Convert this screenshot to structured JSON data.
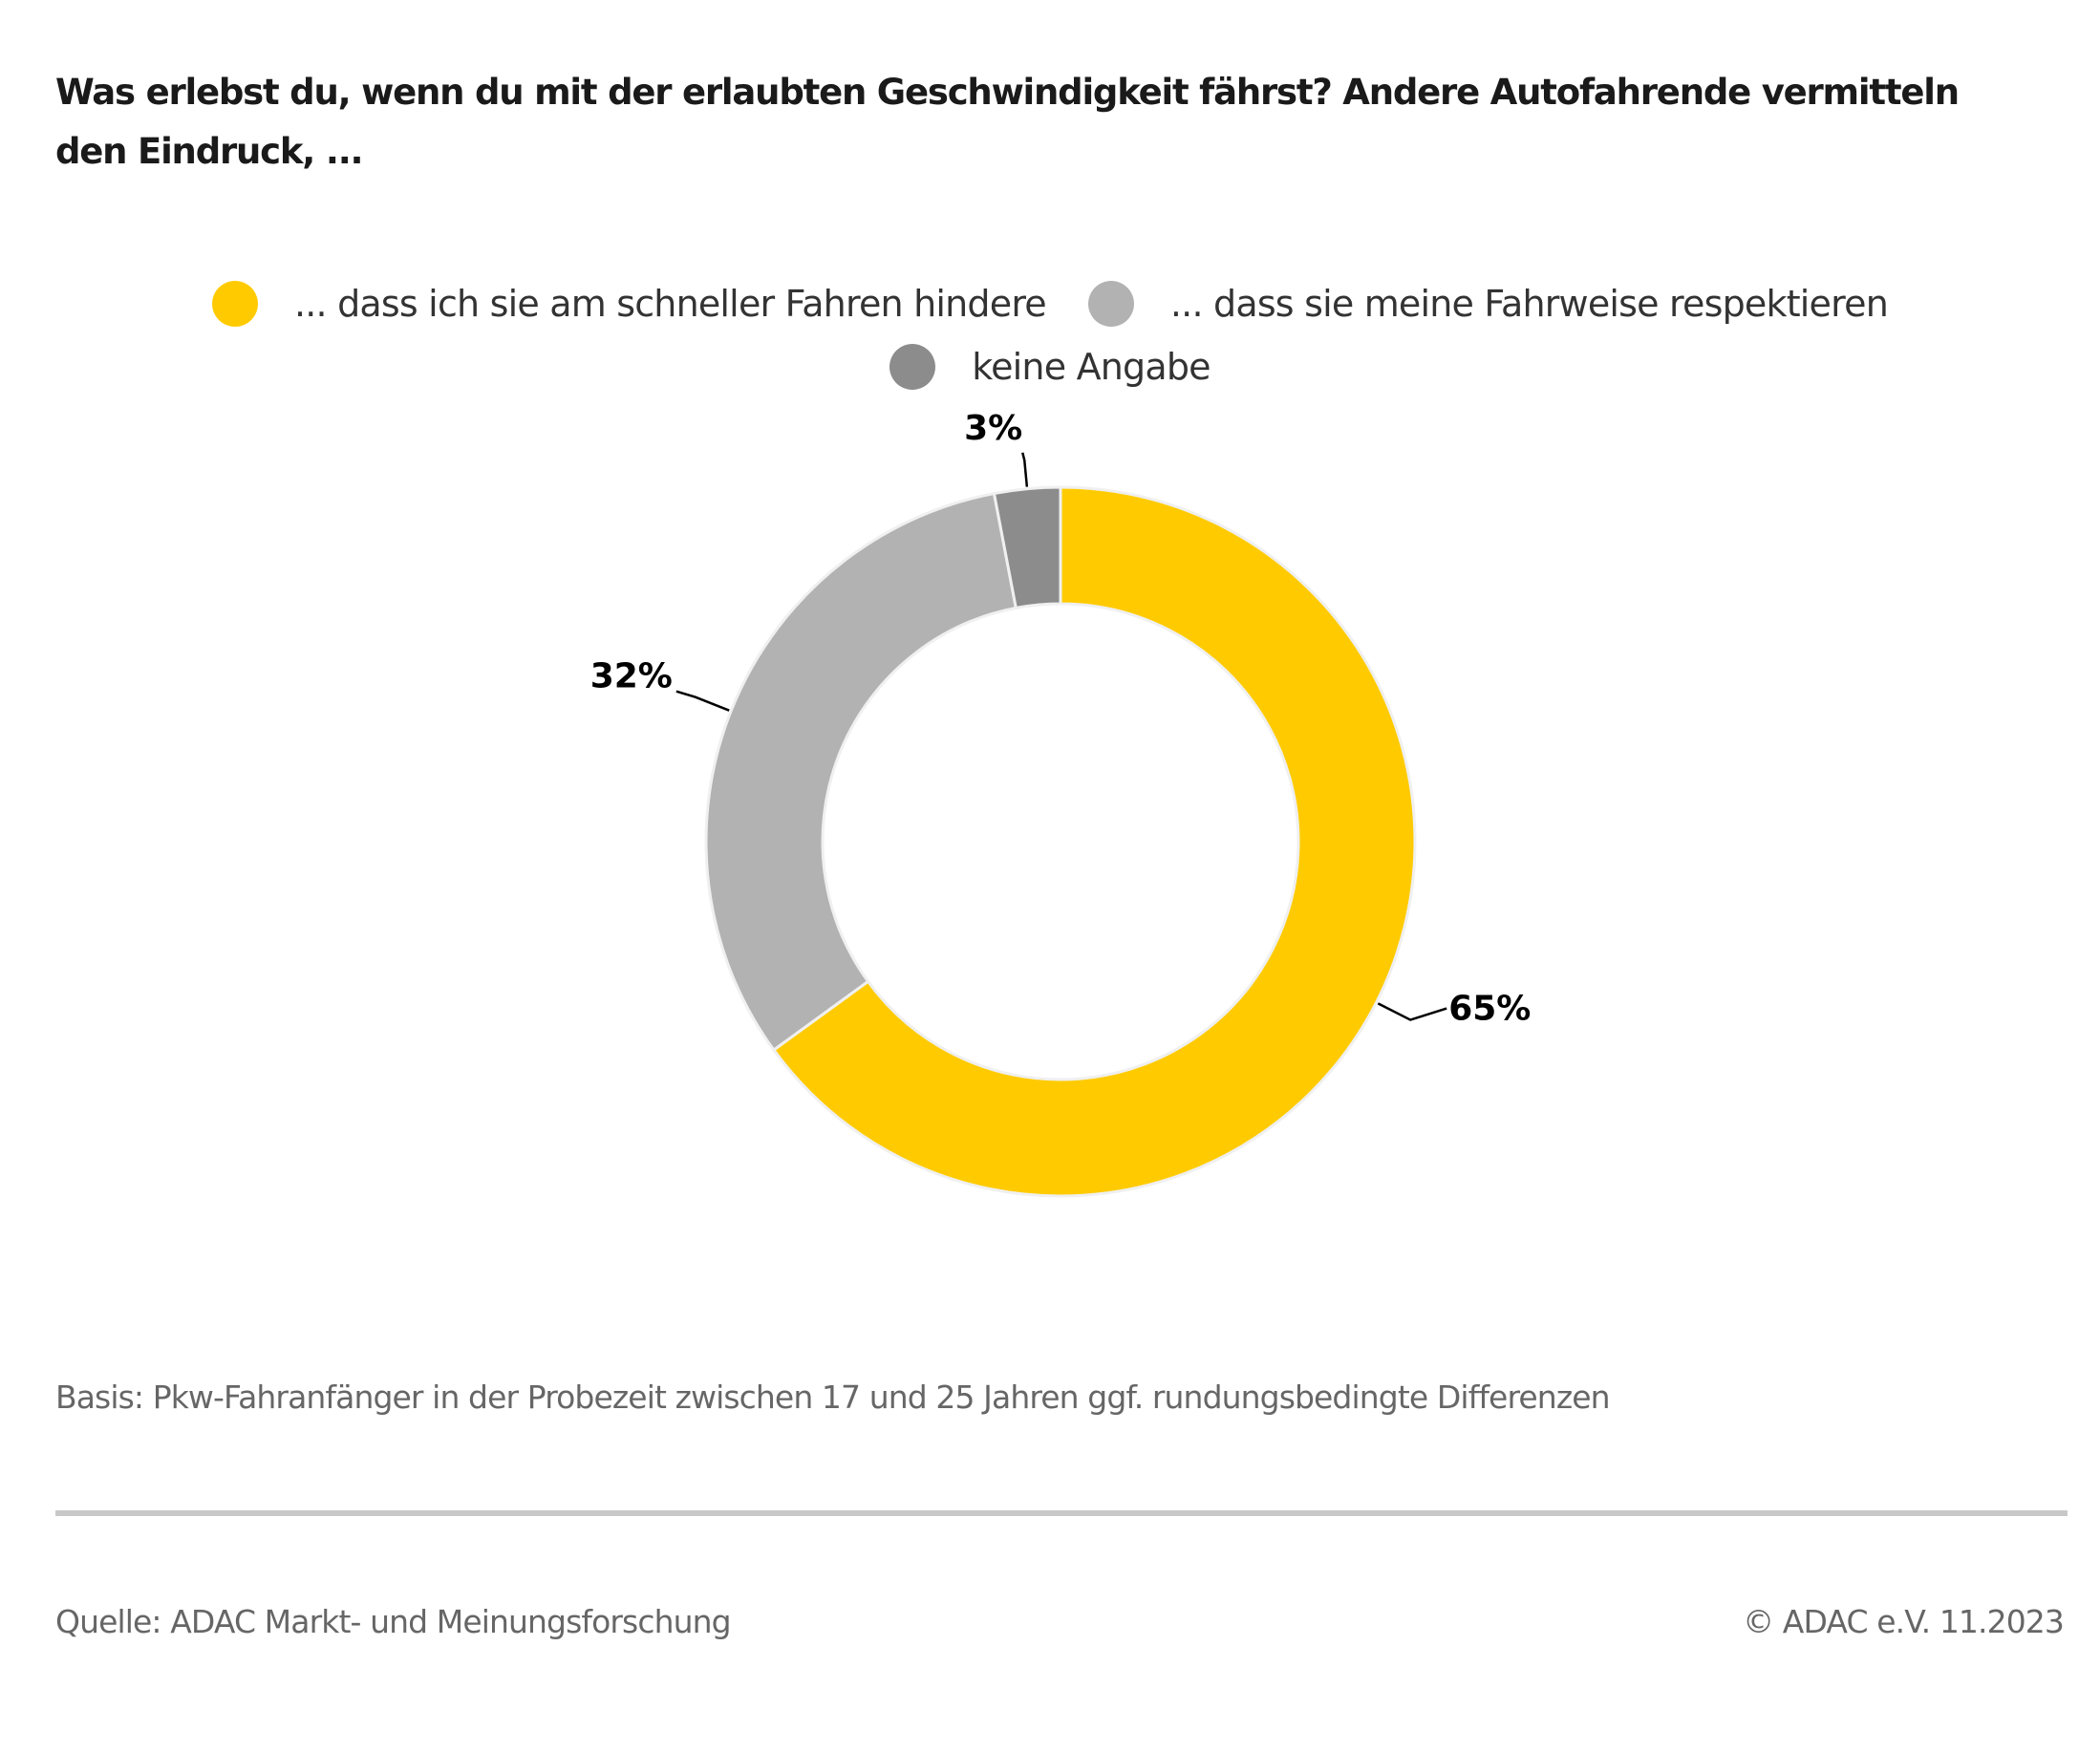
{
  "title": "Was erlebst du, wenn du mit der erlaubten Geschwindigkeit fährst? Andere Autofahrende vermitteln den Eindruck, ...",
  "title_lines": [
    "Was erlebst du, wenn du mit der erlaubten Geschwindigkeit fährst? Andere Autofahrende vermitteln",
    "den Eindruck, ..."
  ],
  "legend": [
    {
      "label": "... dass ich sie am schneller Fahren hindere",
      "color": "#ffcb00"
    },
    {
      "label": "... dass sie meine Fahrweise respektieren",
      "color": "#b2b2b2"
    },
    {
      "label": "keine Angabe",
      "color": "#8c8c8c"
    }
  ],
  "chart_data": {
    "type": "pie",
    "variant": "donut",
    "title": "Was erlebst du, wenn du mit der erlaubten Geschwindigkeit fährst? Andere Autofahrende vermitteln den Eindruck, ...",
    "categories": [
      "... dass ich sie am schneller Fahren hindere",
      "... dass sie meine Fahrweise respektieren",
      "keine Angabe"
    ],
    "values": [
      65,
      32,
      3
    ],
    "unit": "%",
    "data_labels": [
      "65%",
      "32%",
      "3%"
    ],
    "colors": [
      "#ffcb00",
      "#b2b2b2",
      "#8c8c8c"
    ],
    "start_angle": "12 o'clock",
    "direction": "clockwise",
    "legend_position": "top-center"
  },
  "footnote": "Basis: Pkw-Fahranfänger in der Probezeit zwischen 17 und 25 Jahren ggf. rundungsbedingte Differenzen",
  "source": "Quelle: ADAC Markt- und Meinungsforschung",
  "copyright": "© ADAC e.V. 11.2023"
}
